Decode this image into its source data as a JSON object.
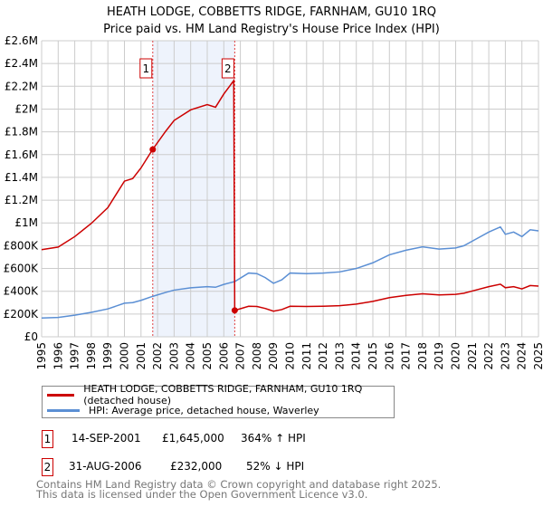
{
  "chart_data": {
    "type": "line",
    "title": "HEATH LODGE, COBBETTS RIDGE, FARNHAM, GU10 1RQ",
    "subtitle": "Price paid vs. HM Land Registry's House Price Index (HPI)",
    "xlim": [
      1995,
      2025
    ],
    "ylim": [
      0,
      2600000
    ],
    "y_ticks": [
      0,
      200000,
      400000,
      600000,
      800000,
      1000000,
      1200000,
      1400000,
      1600000,
      1800000,
      2000000,
      2200000,
      2400000,
      2600000
    ],
    "y_tick_labels": [
      "£0",
      "£200K",
      "£400K",
      "£600K",
      "£800K",
      "£1M",
      "£1.2M",
      "£1.4M",
      "£1.6M",
      "£1.8M",
      "£2M",
      "£2.2M",
      "£2.4M",
      "£2.6M"
    ],
    "x_ticks": [
      1995,
      1996,
      1997,
      1998,
      1999,
      2000,
      2001,
      2002,
      2003,
      2004,
      2005,
      2006,
      2007,
      2008,
      2009,
      2010,
      2011,
      2012,
      2013,
      2014,
      2015,
      2016,
      2017,
      2018,
      2019,
      2020,
      2021,
      2022,
      2023,
      2024,
      2025
    ],
    "grid": true,
    "series": [
      {
        "name": "HEATH LODGE, COBBETTS RIDGE, FARNHAM, GU10 1RQ (detached house)",
        "color": "#cc0000",
        "x": [
          1995,
          1996,
          1997,
          1998,
          1999,
          2000,
          2000.5,
          2001,
          2001.7,
          2002.5,
          2003,
          2004,
          2005,
          2005.5,
          2006,
          2006.6,
          2006.66,
          2007.5,
          2008,
          2008.5,
          2009,
          2009.5,
          2010,
          2011,
          2012,
          2013,
          2014,
          2015,
          2016,
          2017,
          2018,
          2019,
          2020,
          2020.5,
          2021,
          2022,
          2022.7,
          2023,
          2023.5,
          2024,
          2024.5,
          2025
        ],
        "y": [
          765000,
          788000,
          880000,
          996000,
          1135000,
          1367000,
          1390000,
          1483000,
          1645000,
          1807000,
          1900000,
          1993000,
          2039000,
          2016000,
          2132000,
          2250000,
          232000,
          268000,
          266000,
          249000,
          225000,
          239000,
          268000,
          266000,
          268000,
          273000,
          287000,
          311000,
          344000,
          364000,
          378000,
          368000,
          373000,
          383000,
          402000,
          440000,
          462000,
          431000,
          440000,
          421000,
          450000,
          445000
        ]
      },
      {
        "name": "HPI: Average price, detached house, Waverley",
        "color": "#5b8fd4",
        "x": [
          1995,
          1996,
          1997,
          1998,
          1999,
          2000,
          2000.5,
          2001,
          2001.7,
          2002.5,
          2003,
          2004,
          2005,
          2005.5,
          2006,
          2006.66,
          2007.5,
          2008,
          2008.5,
          2009,
          2009.5,
          2010,
          2011,
          2012,
          2013,
          2014,
          2015,
          2016,
          2017,
          2018,
          2019,
          2020,
          2020.5,
          2021,
          2022,
          2022.7,
          2023,
          2023.5,
          2024,
          2024.5,
          2025
        ],
        "y": [
          165000,
          170000,
          190000,
          215000,
          245000,
          295000,
          300000,
          320000,
          355000,
          390000,
          410000,
          430000,
          440000,
          435000,
          460000,
          485000,
          560000,
          555000,
          520000,
          470000,
          500000,
          560000,
          555000,
          560000,
          570000,
          600000,
          650000,
          720000,
          760000,
          790000,
          770000,
          780000,
          800000,
          840000,
          920000,
          965000,
          900000,
          920000,
          880000,
          940000,
          930000
        ]
      }
    ],
    "sales": [
      {
        "label": "1",
        "x": 2001.71,
        "y": 1645000,
        "date": "14-SEP-2001",
        "price": "£1,645,000",
        "hpi": "364% ↑ HPI"
      },
      {
        "label": "2",
        "x": 2006.66,
        "y": 232000,
        "date": "31-AUG-2006",
        "price": "£232,000",
        "hpi": "52% ↓ HPI"
      }
    ]
  },
  "footer": {
    "line1": "Contains HM Land Registry data © Crown copyright and database right 2025.",
    "line2": "This data is licensed under the Open Government Licence v3.0."
  }
}
